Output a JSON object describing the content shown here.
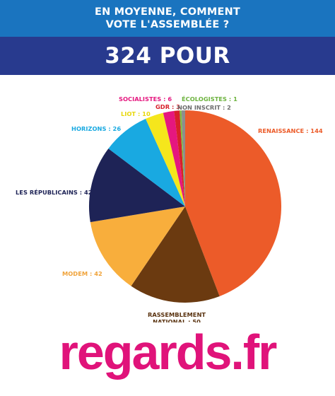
{
  "header": {
    "line1": "EN MOYENNE, COMMENT",
    "line2": "VOTE L'ASSEMBLÉE ?",
    "banner": "324 POUR"
  },
  "colors": {
    "header_bg": "#1a74bf",
    "banner_bg": "#283a8e",
    "logo": "#e0137a"
  },
  "chart_data": {
    "type": "pie",
    "title": "324 POUR",
    "total": 324,
    "slices": [
      {
        "label": "RENAISSANCE : 144",
        "value": 144,
        "color": "#ec5b29",
        "label_color": "#ec5b29"
      },
      {
        "label_lines": [
          "RASSEMBLEMENT",
          "NATIONAL : 50"
        ],
        "value": 50,
        "color": "#6b3a10",
        "label_color": "#5a3310"
      },
      {
        "label": "MODEM : 42",
        "value": 42,
        "color": "#f8ae3c",
        "label_color": "#f0a33a"
      },
      {
        "label": "LES RÉPUBLICAINS : 42",
        "value": 42,
        "color": "#1e2356",
        "label_color": "#1e2356"
      },
      {
        "label": "HORIZONS : 26",
        "value": 26,
        "color": "#19a9e1",
        "label_color": "#19a9e1"
      },
      {
        "label": "LIOT : 10",
        "value": 10,
        "color": "#f5e61c",
        "label_color": "#e8d80c"
      },
      {
        "label": "SOCIALISTES : 6",
        "value": 6,
        "color": "#e5177f",
        "label_color": "#e5177f"
      },
      {
        "label": "GDR : 3",
        "value": 3,
        "color": "#d81f2a",
        "label_color": "#d81f2a"
      },
      {
        "label": "ÉCOLOGISTES : 1",
        "value": 1,
        "color": "#7fbd3f",
        "label_color": "#6db33f"
      },
      {
        "label": "NON INSCRIT : 2",
        "value": 2,
        "color": "#8d8d8d",
        "label_color": "#6d6d6d"
      }
    ]
  },
  "logo": {
    "text": "regards.fr"
  }
}
